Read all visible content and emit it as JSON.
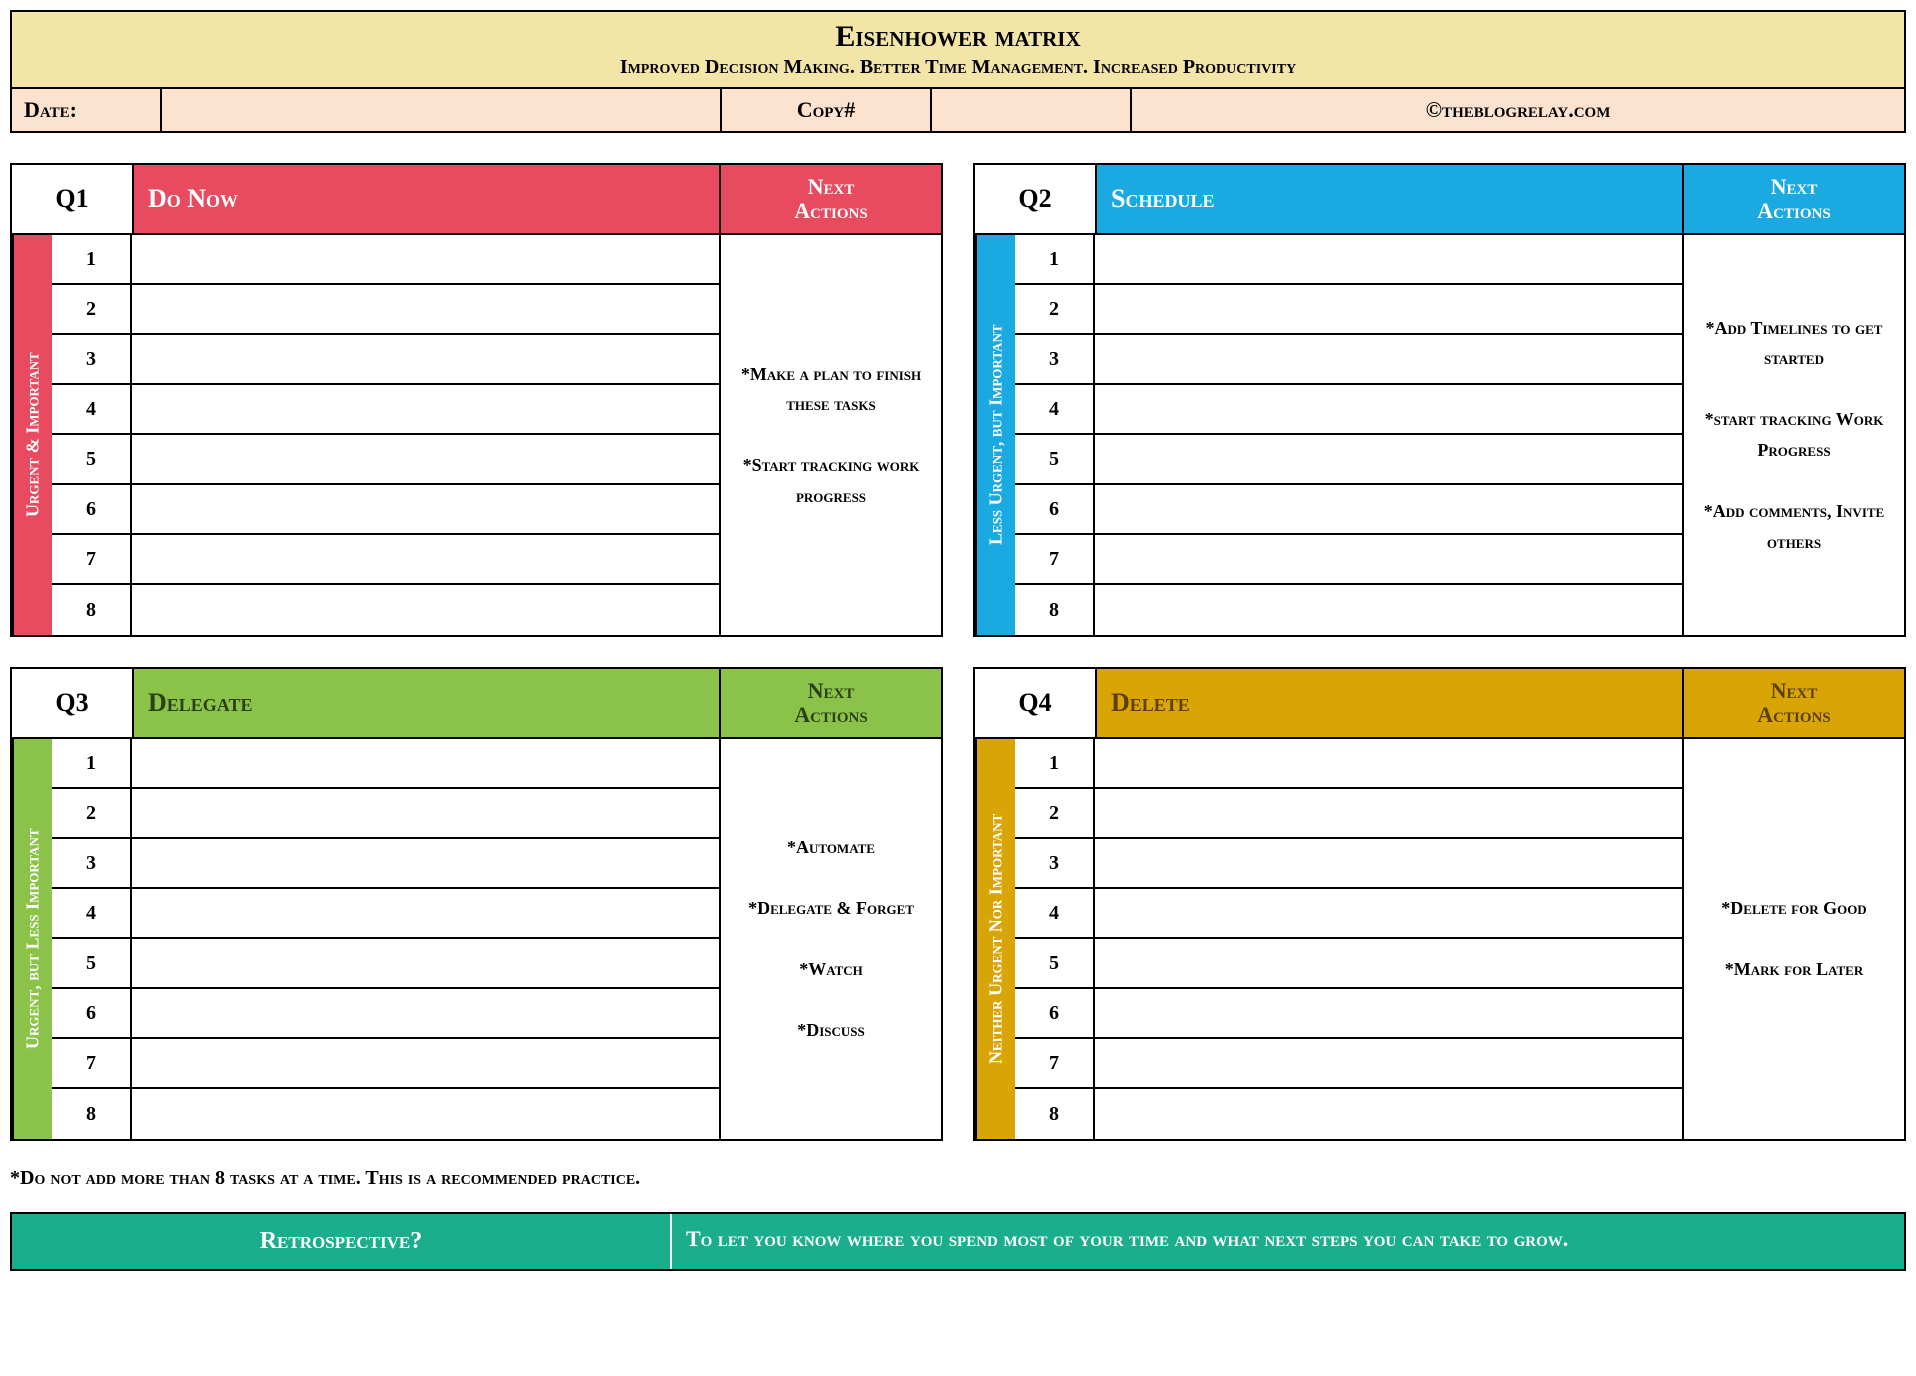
{
  "colors": {
    "header_bg": "#f3e4a8",
    "meta_bg": "#fbe3cf",
    "q1": "#e84a5f",
    "q2": "#1aa9e1",
    "q3": "#8bc34a",
    "q4": "#d9a405",
    "retro": "#1aae8d",
    "text_dark": "#000000",
    "text_on_q4": "#5c4000"
  },
  "header": {
    "title": "Eisenhower matrix",
    "subtitle": "Improved Decision Making. Better Time Management. Increased Productivity",
    "date_label": "Date:",
    "date_value": "",
    "copy_label": "Copy#",
    "copy_value": "",
    "credit": "©theblogrelay.com"
  },
  "row_numbers": [
    "1",
    "2",
    "3",
    "4",
    "5",
    "6",
    "7",
    "8"
  ],
  "next_actions_label": "Next\nActions",
  "quadrants": [
    {
      "id": "Q1",
      "title": "Do Now",
      "side": "Urgent & Important",
      "color_key": "q1",
      "title_color": "#ffffff",
      "side_color": "#ffffff",
      "actions": "*Make a plan to finish these tasks\n\n*Start tracking work progress",
      "tasks": [
        "",
        "",
        "",
        "",
        "",
        "",
        "",
        ""
      ]
    },
    {
      "id": "Q2",
      "title": "Schedule",
      "side": "Less Urgent, but Important",
      "color_key": "q2",
      "title_color": "#ffffff",
      "side_color": "#ffffff",
      "actions": "*Add Timelines to get started\n\n*start tracking Work Progress\n\n*Add comments, Invite others",
      "tasks": [
        "",
        "",
        "",
        "",
        "",
        "",
        "",
        ""
      ]
    },
    {
      "id": "Q3",
      "title": "Delegate",
      "side": "Urgent, but Less Important",
      "color_key": "q3",
      "title_color": "#2d4010",
      "side_color": "#ffffff",
      "actions": "*Automate\n\n*Delegate & Forget\n\n*Watch\n\n*Discuss",
      "tasks": [
        "",
        "",
        "",
        "",
        "",
        "",
        "",
        ""
      ]
    },
    {
      "id": "Q4",
      "title": "Delete",
      "side": "Neither Urgent Nor Important",
      "color_key": "q4",
      "title_color": "#5c4000",
      "side_color": "#ffffff",
      "actions": "*Delete for Good\n\n*Mark for Later",
      "tasks": [
        "",
        "",
        "",
        "",
        "",
        "",
        "",
        ""
      ]
    }
  ],
  "footnote": "*Do not add more than 8 tasks at a time. This is a recommended practice.",
  "retro": {
    "label": "Retrospective?",
    "text": "To let you know where you spend most of your time and what next steps you can take to grow."
  }
}
